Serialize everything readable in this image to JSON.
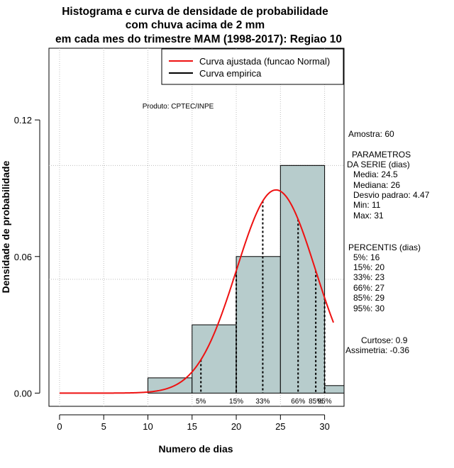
{
  "chart_data": {
    "type": "histogram",
    "title": [
      "Histograma e curva de densidade de probabilidade",
      "com chuva acima de 2 mm",
      "em cada mes do trimestre MAM (1998-2017): Regiao 10"
    ],
    "xlabel": "Numero de dias",
    "ylabel": "Densidade de probabilidade",
    "xlim": [
      -1.2,
      32.2
    ],
    "ylim": [
      -0.0058,
      0.1515
    ],
    "x_ticks": [
      0,
      5,
      10,
      15,
      20,
      25,
      30
    ],
    "y_ticks": [
      0.0,
      0.06,
      0.12
    ],
    "y_tick_labels": [
      "0.00",
      "0.06",
      "0.12"
    ],
    "grid_y": [
      0.05,
      0.1
    ],
    "bins": [
      {
        "x0": 10,
        "x1": 15,
        "density": 0.0067
      },
      {
        "x0": 15,
        "x1": 20,
        "density": 0.03
      },
      {
        "x0": 20,
        "x1": 25,
        "density": 0.06
      },
      {
        "x0": 25,
        "x1": 30,
        "density": 0.1
      },
      {
        "x0": 30,
        "x1": 35,
        "density": 0.0033
      }
    ],
    "normal_curve": {
      "mean": 24.5,
      "sd": 4.47,
      "x_range": [
        0,
        31
      ]
    },
    "percentile_lines": [
      {
        "label": "5%",
        "x": 16
      },
      {
        "label": "15%",
        "x": 20
      },
      {
        "label": "33%",
        "x": 23
      },
      {
        "label": "66%",
        "x": 27
      },
      {
        "label": "85%",
        "x": 29
      },
      {
        "label": "95%",
        "x": 30
      }
    ],
    "legend": {
      "position": "top-right",
      "entries": [
        {
          "label": "Curva ajustada (funcao Normal)",
          "color": "#ee1111"
        },
        {
          "label": "Curva empirica",
          "color": "#000000"
        }
      ]
    },
    "annotation_product": "Produto: CPTEC/INPE",
    "colors": {
      "bar_fill": "#b7cccc",
      "curve": "#ee1111",
      "grid": "#bdbdbd"
    }
  },
  "side_panel": {
    "amostra": "Amostra: 60",
    "parametros": [
      "PARAMETROS",
      "DA SERIE (dias)",
      "Media: 24.5",
      "Mediana: 26",
      "Desvio padrao: 4.47",
      "Min: 11",
      "Max: 31"
    ],
    "percentis": [
      "PERCENTIS (dias)",
      "5%: 16",
      "15%: 20",
      "33%: 23",
      "66%: 27",
      "85%: 29",
      "95%: 30"
    ],
    "curtose": "Curtose: 0.9",
    "assimetria": "Assimetria: -0.36"
  }
}
